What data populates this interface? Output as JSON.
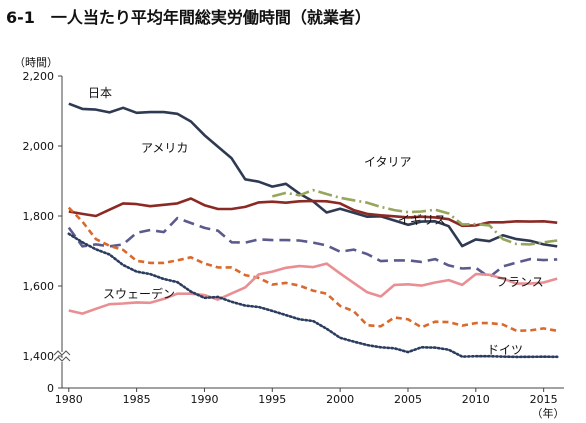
{
  "title": "6-1　一人当たり平均年間総実労働時間（就業者）",
  "chart_data": {
    "type": "line",
    "title": "6-1　一人当たり平均年間総実労働時間（就業者）",
    "ylabel": "（時間）",
    "xlabel": "（年）",
    "ylim": [
      0,
      2200
    ],
    "y_axis_break": true,
    "yticks": [
      0,
      1400,
      1600,
      1800,
      2000,
      2200
    ],
    "ytick_labels": [
      "0",
      "1,400",
      "1,600",
      "1,800",
      "2,000",
      "2,200"
    ],
    "xticks": [
      1980,
      1985,
      1990,
      1995,
      2000,
      2005,
      2010,
      2015
    ],
    "grid": false,
    "legend": "inline labels",
    "series": [
      {
        "name": "日本",
        "color": "#2f3a52",
        "style": "solid",
        "x": [
          1980,
          1981,
          1982,
          1983,
          1984,
          1985,
          1986,
          1987,
          1988,
          1989,
          1990,
          1991,
          1992,
          1993,
          1994,
          1995,
          1996,
          1997,
          1998,
          1999,
          2000,
          2001,
          2002,
          2003,
          2004,
          2005,
          2006,
          2007,
          2008,
          2009,
          2010,
          2011,
          2012,
          2013,
          2014,
          2015,
          2016
        ],
        "values": [
          2121,
          2106,
          2104,
          2096,
          2109,
          2095,
          2097,
          2097,
          2092,
          2070,
          2031,
          1998,
          1965,
          1905,
          1898,
          1884,
          1892,
          1864,
          1842,
          1810,
          1821,
          1809,
          1798,
          1799,
          1787,
          1775,
          1784,
          1785,
          1771,
          1714,
          1733,
          1728,
          1745,
          1734,
          1729,
          1719,
          1713
        ]
      },
      {
        "name": "アメリカ",
        "color": "#8b2a25",
        "style": "solid",
        "x": [
          1980,
          1981,
          1982,
          1983,
          1984,
          1985,
          1986,
          1987,
          1988,
          1989,
          1990,
          1991,
          1992,
          1993,
          1994,
          1995,
          1996,
          1997,
          1998,
          1999,
          2000,
          2001,
          2002,
          2003,
          2004,
          2005,
          2006,
          2007,
          2008,
          2009,
          2010,
          2011,
          2012,
          2013,
          2014,
          2015,
          2016
        ],
        "values": [
          1813,
          1806,
          1800,
          1818,
          1836,
          1834,
          1828,
          1832,
          1836,
          1850,
          1831,
          1820,
          1820,
          1826,
          1839,
          1841,
          1838,
          1842,
          1843,
          1842,
          1836,
          1817,
          1806,
          1802,
          1799,
          1796,
          1798,
          1796,
          1791,
          1772,
          1773,
          1782,
          1782,
          1785,
          1784,
          1785,
          1781
        ]
      },
      {
        "name": "イタリア",
        "color": "#96a65c",
        "style": "dashdot",
        "x": [
          1995,
          1996,
          1997,
          1998,
          1999,
          2000,
          2001,
          2002,
          2003,
          2004,
          2005,
          2006,
          2007,
          2008,
          2009,
          2010,
          2011,
          2012,
          2013,
          2014,
          2015,
          2016
        ],
        "values": [
          1856,
          1866,
          1859,
          1874,
          1863,
          1852,
          1845,
          1838,
          1826,
          1817,
          1811,
          1813,
          1818,
          1807,
          1776,
          1777,
          1773,
          1734,
          1720,
          1719,
          1725,
          1730
        ]
      },
      {
        "name": "イギリス",
        "color": "#5b5a8c",
        "style": "longdash",
        "x": [
          1980,
          1981,
          1982,
          1983,
          1984,
          1985,
          1986,
          1987,
          1988,
          1989,
          1990,
          1991,
          1992,
          1993,
          1994,
          1995,
          1996,
          1997,
          1998,
          1999,
          2000,
          2001,
          2002,
          2003,
          2004,
          2005,
          2006,
          2007,
          2008,
          2009,
          2010,
          2011,
          2012,
          2013,
          2014,
          2015,
          2016
        ],
        "values": [
          1767,
          1713,
          1719,
          1713,
          1719,
          1752,
          1760,
          1754,
          1794,
          1780,
          1766,
          1758,
          1725,
          1724,
          1733,
          1731,
          1731,
          1730,
          1724,
          1716,
          1698,
          1704,
          1691,
          1671,
          1673,
          1673,
          1669,
          1677,
          1659,
          1650,
          1652,
          1625,
          1656,
          1667,
          1677,
          1674,
          1676
        ]
      },
      {
        "name": "フランス",
        "color": "#d9692c",
        "style": "shortdash",
        "x": [
          1980,
          1981,
          1982,
          1983,
          1984,
          1985,
          1986,
          1987,
          1988,
          1989,
          1990,
          1991,
          1992,
          1993,
          1994,
          1995,
          1996,
          1997,
          1998,
          1999,
          2000,
          2001,
          2002,
          2003,
          2004,
          2005,
          2006,
          2007,
          2008,
          2009,
          2010,
          2011,
          2012,
          2013,
          2014,
          2015,
          2016
        ],
        "values": [
          1824,
          1784,
          1734,
          1715,
          1703,
          1672,
          1666,
          1666,
          1673,
          1682,
          1664,
          1653,
          1653,
          1631,
          1623,
          1604,
          1609,
          1601,
          1587,
          1578,
          1543,
          1528,
          1488,
          1485,
          1510,
          1505,
          1482,
          1498,
          1497,
          1487,
          1494,
          1494,
          1490,
          1472,
          1473,
          1479,
          1472
        ]
      },
      {
        "name": "スウェーデン",
        "color": "#e98f93",
        "style": "solid",
        "x": [
          1980,
          1981,
          1982,
          1983,
          1984,
          1985,
          1986,
          1987,
          1988,
          1989,
          1990,
          1991,
          1992,
          1993,
          1994,
          1995,
          1996,
          1997,
          1998,
          1999,
          2000,
          2001,
          2002,
          2003,
          2004,
          2005,
          2006,
          2007,
          2008,
          2009,
          2010,
          2011,
          2012,
          2013,
          2014,
          2015,
          2016
        ],
        "values": [
          1530,
          1521,
          1535,
          1548,
          1550,
          1553,
          1552,
          1563,
          1578,
          1578,
          1574,
          1561,
          1579,
          1596,
          1633,
          1641,
          1652,
          1657,
          1654,
          1664,
          1636,
          1609,
          1582,
          1570,
          1603,
          1605,
          1601,
          1610,
          1617,
          1603,
          1634,
          1632,
          1621,
          1607,
          1607,
          1610,
          1621
        ]
      },
      {
        "name": "ドイツ",
        "color": "#2b3d5e",
        "style": "dotted",
        "x": [
          1980,
          1981,
          1982,
          1983,
          1984,
          1985,
          1986,
          1987,
          1988,
          1989,
          1990,
          1991,
          1992,
          1993,
          1994,
          1995,
          1996,
          1997,
          1998,
          1999,
          2000,
          2001,
          2002,
          2003,
          2004,
          2005,
          2006,
          2007,
          2008,
          2009,
          2010,
          2011,
          2012,
          2013,
          2014,
          2015,
          2016
        ],
        "values": [
          1749,
          1725,
          1705,
          1690,
          1660,
          1641,
          1634,
          1620,
          1611,
          1584,
          1566,
          1569,
          1555,
          1544,
          1540,
          1529,
          1517,
          1505,
          1500,
          1478,
          1452,
          1441,
          1431,
          1425,
          1422,
          1411,
          1425,
          1424,
          1418,
          1373,
          1390,
          1393,
          1375,
          1362,
          1366,
          1368,
          1363
        ]
      }
    ]
  }
}
